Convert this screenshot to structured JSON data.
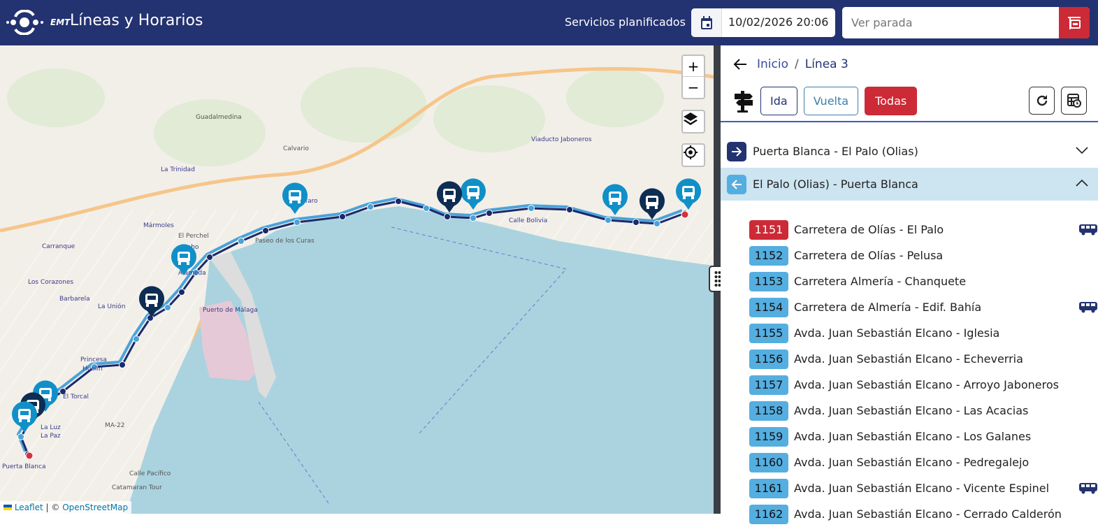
{
  "header": {
    "brand": "EMT",
    "title": "Líneas y Horarios",
    "services_label": "Servicios planificados",
    "date_value": "10/02/2026 20:06",
    "stop_placeholder": "Ver parada",
    "icons": {
      "calendar": "calendar-icon",
      "stop": "bus-stop-sign-icon"
    }
  },
  "map": {
    "zoom_in": "+",
    "zoom_out": "−",
    "labels": [
      "Puerta Blanca",
      "La Luz",
      "La Paz",
      "El Torcal",
      "Princesa",
      "Huelin",
      "La Unión",
      "Barbarela",
      "Los Corazones",
      "Carranque",
      "Mármoles",
      "La Trinidad",
      "Soho",
      "Alameda",
      "Puerto de Málaga",
      "Gibralfaro",
      "Calle Bolivia",
      "Viaducto Jaboneros",
      "Calvario",
      "Paseo de los Curas",
      "MA-22",
      "Catamaran Tour",
      "Calle Pacífico",
      "El Perchel",
      "Guadalmedina"
    ],
    "attribution": {
      "leaflet": "Leaflet",
      "sep": "|",
      "copy": "©",
      "osm": "OpenStreetMap"
    },
    "colors": {
      "land": "#f2efe9",
      "sea": "#aad3df",
      "route_outbound": "#1a2a6c",
      "route_return": "#4aa3d8",
      "bus_dark": "#0e2d52",
      "bus_light": "#1190c8"
    }
  },
  "panel": {
    "breadcrumb": {
      "home": "Inicio",
      "sep": "/",
      "current": "Línea 3"
    },
    "tabs": {
      "ida": "Ida",
      "vuelta": "Vuelta",
      "todas": "Todas",
      "active": "Todas"
    },
    "directions": [
      {
        "label": "Puerta Blanca - El Palo (Olias)",
        "expanded": false
      },
      {
        "label": "El Palo (Olias) - Puerta Blanca",
        "expanded": true
      }
    ],
    "stops": [
      {
        "code": "1151",
        "name": "Carretera de Olías - El Palo",
        "bus": true,
        "highlight": true
      },
      {
        "code": "1152",
        "name": "Carretera de Olías - Pelusa",
        "bus": false
      },
      {
        "code": "1153",
        "name": "Carretera Almería - Chanquete",
        "bus": false
      },
      {
        "code": "1154",
        "name": "Carretera de Almería - Edif. Bahía",
        "bus": true
      },
      {
        "code": "1155",
        "name": "Avda. Juan Sebastián Elcano - Iglesia",
        "bus": false
      },
      {
        "code": "1156",
        "name": "Avda. Juan Sebastián Elcano - Echeverria",
        "bus": false
      },
      {
        "code": "1157",
        "name": "Avda. Juan Sebastián Elcano - Arroyo Jaboneros",
        "bus": false
      },
      {
        "code": "1158",
        "name": "Avda. Juan Sebastián Elcano - Las Acacias",
        "bus": false
      },
      {
        "code": "1159",
        "name": "Avda. Juan Sebastián Elcano - Los Galanes",
        "bus": false
      },
      {
        "code": "1160",
        "name": "Avda. Juan Sebastián Elcano - Pedregalejo",
        "bus": false
      },
      {
        "code": "1161",
        "name": "Avda. Juan Sebastián Elcano - Vicente Espinel",
        "bus": true
      },
      {
        "code": "1162",
        "name": "Avda. Juan Sebastián Elcano - Cerrado Calderón",
        "bus": false
      }
    ]
  }
}
